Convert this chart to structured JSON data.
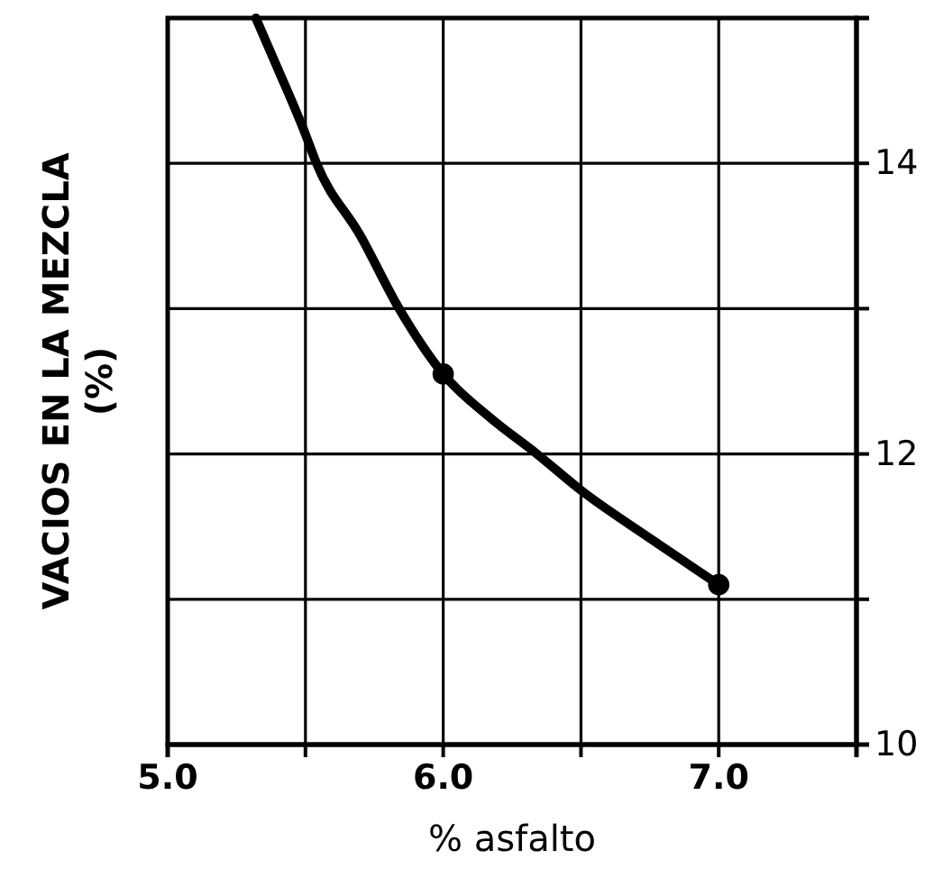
{
  "chart_data": {
    "type": "line",
    "xlabel": "% asfalto",
    "ylabel": "VACIOS EN LA MEZCLA\n(%)",
    "xlim": [
      5.0,
      7.5
    ],
    "xticks": [
      {
        "value": 5.0,
        "label": "5.0"
      },
      {
        "value": 5.5,
        "label": null
      },
      {
        "value": 6.0,
        "label": "6.0"
      },
      {
        "value": 6.5,
        "label": null
      },
      {
        "value": 7.0,
        "label": "7.0"
      },
      {
        "value": 7.5,
        "label": null
      }
    ],
    "ylim": [
      10,
      15
    ],
    "yticks": [
      10,
      {
        "value": 11,
        "label": null
      },
      12,
      {
        "value": 13,
        "label": null
      },
      14,
      {
        "value": 15,
        "label": null
      }
    ],
    "grid": true,
    "series": [
      {
        "color": "#000000",
        "marker": "none",
        "x": [
          5.32,
          5.4,
          5.5,
          5.54,
          5.7,
          5.84,
          6.0,
          6.17,
          6.34,
          6.5,
          6.75,
          7.0
        ],
        "values": [
          15,
          14.65,
          14.2,
          14,
          13.5,
          13.0,
          12.55,
          12.25,
          12.0,
          11.75,
          11.42,
          11.1
        ]
      },
      {
        "type": "scatter",
        "color": "#000000",
        "marker": "circle",
        "x": [
          6.0,
          7.0
        ],
        "values": [
          12.55,
          11.1
        ]
      }
    ]
  }
}
